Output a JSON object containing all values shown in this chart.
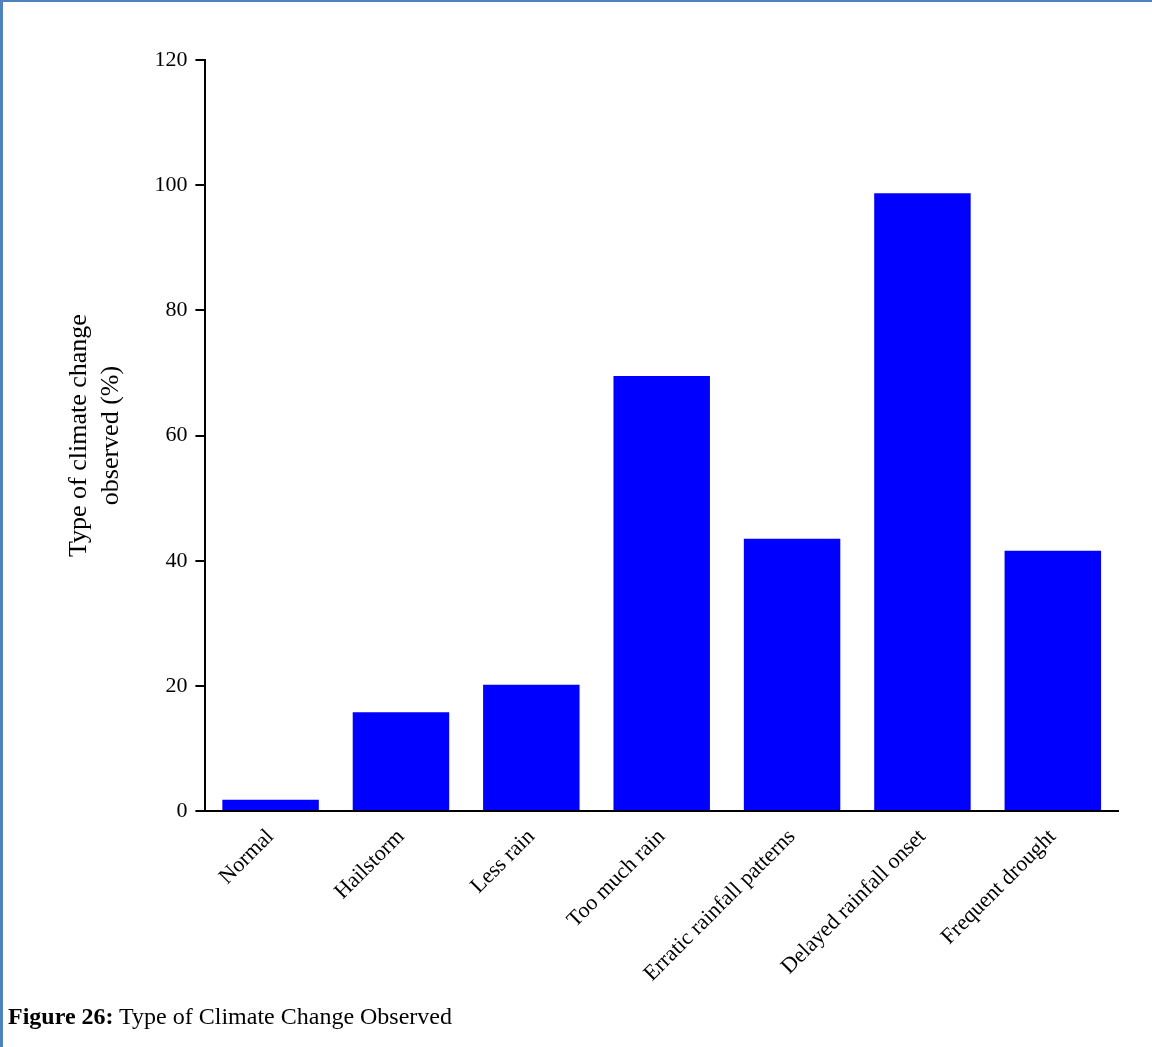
{
  "chart_data": {
    "type": "bar",
    "ylabel": "Type of climate change observed (%)",
    "categories": [
      "Normal",
      "Hailstorm",
      "Less rain",
      "Too much rain",
      "Erratic rainfall patterns",
      "Delayed rainfall onset",
      "Frequent drought"
    ],
    "values": [
      1.8,
      15.8,
      20.2,
      69.5,
      43.5,
      98.7,
      41.6
    ],
    "color": "#0000ff",
    "ylim": [
      0,
      120
    ],
    "yticks": [
      0,
      20,
      40,
      60,
      80,
      100,
      120
    ],
    "grid": false,
    "legend": false,
    "annotations": [
      "Figure 26: Type of Climate Change Observed"
    ]
  }
}
